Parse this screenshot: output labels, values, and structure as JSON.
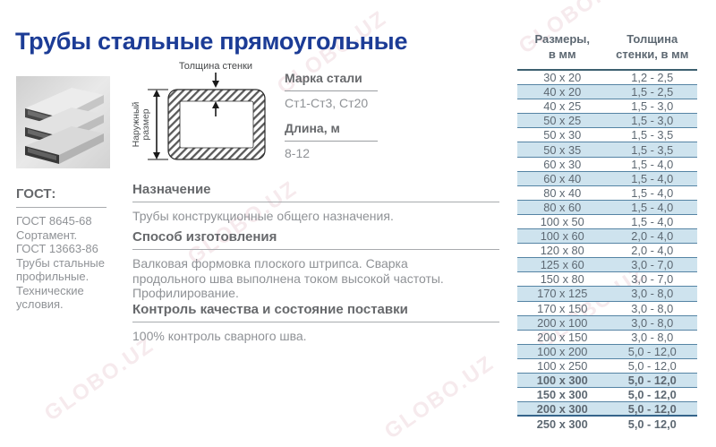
{
  "page": {
    "title": "Трубы стальные прямоугольные"
  },
  "colors": {
    "title_blue": "#1c3c96",
    "heading_gray": "#67696c",
    "body_gray": "#8f9296",
    "table_text": "#5d6872",
    "row_shade": "#cee3ee",
    "row_line": "#5584a4",
    "header_line": "#3d6070",
    "thick_line": "#35648a",
    "rule_gray": "#a8abae"
  },
  "watermark": "GLOBO.UZ",
  "diagram": {
    "top_label": "Толщина стенки",
    "side_label_line1": "Наружный",
    "side_label_line2": "размер"
  },
  "specs": {
    "steel_grade_label": "Марка стали",
    "steel_grade_value": "Ст1-Ст3, Ст20",
    "length_label": "Длина, м",
    "length_value": "8-12"
  },
  "gost": {
    "heading": "ГОСТ:",
    "lines": [
      "ГОСТ 8645-68",
      "Сортамент.",
      "ГОСТ 13663-86",
      "Трубы стальные",
      "профильные.",
      "Технические",
      "условия."
    ]
  },
  "sections": [
    {
      "heading": "Назначение",
      "body": "Трубы конструкционные общего назначения."
    },
    {
      "heading": "Способ изготовления",
      "body": "Валковая формовка плоского штрипса. Сварка\nпродольного шва выполнена током высокой частоты.\nПрофилирование."
    },
    {
      "heading": "Контроль качества и состояние поставки",
      "body": "100% контроль сварного шва."
    }
  ],
  "table": {
    "headers": [
      {
        "line1": "Размеры,",
        "line2": "в мм"
      },
      {
        "line1": "Толщина",
        "line2": "стенки, в мм"
      }
    ],
    "rows": [
      {
        "size": "30 x 20",
        "thickness": "1,2 - 2,5",
        "shaded": false,
        "bold": false,
        "thick": false
      },
      {
        "size": "40 x 20",
        "thickness": "1,5 - 2,5",
        "shaded": true,
        "bold": false,
        "thick": false
      },
      {
        "size": "40 x 25",
        "thickness": "1,5 - 3,0",
        "shaded": false,
        "bold": false,
        "thick": false
      },
      {
        "size": "50 x 25",
        "thickness": "1,5 - 3,0",
        "shaded": true,
        "bold": false,
        "thick": false
      },
      {
        "size": "50 x 30",
        "thickness": "1,5 - 3,5",
        "shaded": false,
        "bold": false,
        "thick": false
      },
      {
        "size": "50 x 35",
        "thickness": "1,5 - 3,5",
        "shaded": true,
        "bold": false,
        "thick": false
      },
      {
        "size": "60 x 30",
        "thickness": "1,5 - 4,0",
        "shaded": false,
        "bold": false,
        "thick": false
      },
      {
        "size": "60 x 40",
        "thickness": "1,5 - 4,0",
        "shaded": true,
        "bold": false,
        "thick": false
      },
      {
        "size": "80 x 40",
        "thickness": "1,5 - 4,0",
        "shaded": false,
        "bold": false,
        "thick": false
      },
      {
        "size": "80 x 60",
        "thickness": "1,5 - 4,0",
        "shaded": true,
        "bold": false,
        "thick": false
      },
      {
        "size": "100 x 50",
        "thickness": "1,5 - 4,0",
        "shaded": false,
        "bold": false,
        "thick": false
      },
      {
        "size": "100 x 60",
        "thickness": "2,0 - 4,0",
        "shaded": true,
        "bold": false,
        "thick": false
      },
      {
        "size": "120 x 80",
        "thickness": "2,0 - 4,0",
        "shaded": false,
        "bold": false,
        "thick": false
      },
      {
        "size": "125 x 60",
        "thickness": "3,0 - 7,0",
        "shaded": true,
        "bold": false,
        "thick": false
      },
      {
        "size": "150 x 80",
        "thickness": "3,0 - 7,0",
        "shaded": false,
        "bold": false,
        "thick": false
      },
      {
        "size": "170 x 125",
        "thickness": "3,0 - 8,0",
        "shaded": true,
        "bold": false,
        "thick": false
      },
      {
        "size": "170 x 150",
        "thickness": "3,0 - 8,0",
        "shaded": false,
        "bold": false,
        "thick": false
      },
      {
        "size": "200 x 100",
        "thickness": "3,0 - 8,0",
        "shaded": true,
        "bold": false,
        "thick": false
      },
      {
        "size": "200 x 150",
        "thickness": "3,0 - 8,0",
        "shaded": false,
        "bold": false,
        "thick": false
      },
      {
        "size": "100 x 200",
        "thickness": "5,0 - 12,0",
        "shaded": true,
        "bold": false,
        "thick": false
      },
      {
        "size": "100 x 250",
        "thickness": "5,0 - 12,0",
        "shaded": false,
        "bold": false,
        "thick": false
      },
      {
        "size": "100 x 300",
        "thickness": "5,0 - 12,0",
        "shaded": true,
        "bold": true,
        "thick": false
      },
      {
        "size": "150 x 300",
        "thickness": "5,0 - 12,0",
        "shaded": false,
        "bold": true,
        "thick": false
      },
      {
        "size": "200 x 300",
        "thickness": "5,0 - 12,0",
        "shaded": true,
        "bold": true,
        "thick": true
      },
      {
        "size": "250 x 300",
        "thickness": "5,0 - 12,0",
        "shaded": false,
        "bold": true,
        "thick": false
      }
    ]
  }
}
